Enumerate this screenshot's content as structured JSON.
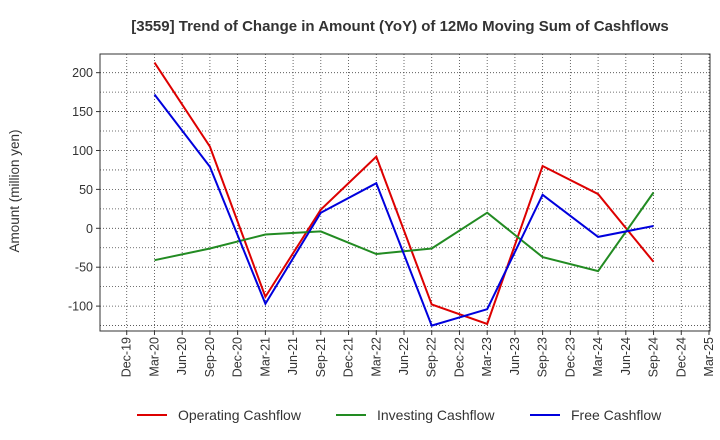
{
  "chart_data": {
    "type": "line",
    "title": "[3559]  Trend of Change in Amount (YoY) of 12Mo Moving Sum of Cashflows",
    "xlabel": "",
    "ylabel": "Amount (million yen)",
    "ylim": [
      -132,
      224
    ],
    "yticks": [
      -100,
      -50,
      0,
      50,
      100,
      150,
      200
    ],
    "grid": true,
    "legend_position": "bottom",
    "categories": [
      "Dec-19",
      "Mar-20",
      "Jun-20",
      "Sep-20",
      "Dec-20",
      "Mar-21",
      "Jun-21",
      "Sep-21",
      "Dec-21",
      "Mar-22",
      "Jun-22",
      "Sep-22",
      "Dec-22",
      "Mar-23",
      "Jun-23",
      "Sep-23",
      "Dec-23",
      "Mar-24",
      "Jun-24",
      "Sep-24",
      "Dec-24",
      "Mar-25"
    ],
    "series": [
      {
        "name": "Operating Cashflow",
        "color": "#dd0000",
        "values": [
          null,
          213,
          null,
          105,
          null,
          -88,
          null,
          24,
          null,
          92,
          null,
          -98,
          null,
          -123,
          null,
          80,
          null,
          44,
          null,
          -43,
          null,
          null
        ]
      },
      {
        "name": "Investing Cashflow",
        "color": "#228b22",
        "values": [
          null,
          -41,
          null,
          -26,
          null,
          -8,
          null,
          -4,
          null,
          -33,
          null,
          -26,
          null,
          20,
          null,
          -37,
          null,
          -55,
          null,
          46,
          null,
          null
        ]
      },
      {
        "name": "Free Cashflow",
        "color": "#0000dd",
        "values": [
          null,
          172,
          null,
          79,
          null,
          -97,
          null,
          20,
          null,
          58,
          null,
          -125,
          null,
          -104,
          null,
          43,
          null,
          -11,
          null,
          3,
          null,
          null
        ]
      }
    ]
  }
}
